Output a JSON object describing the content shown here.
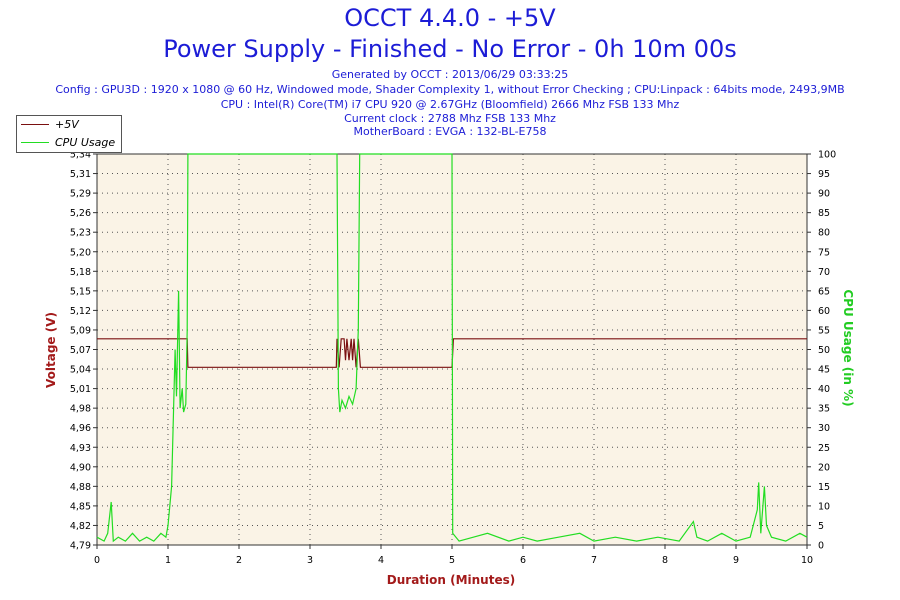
{
  "header": {
    "title": "OCCT 4.4.0 - +5V",
    "subtitle": "Power Supply - Finished - No Error - 0h 10m 00s",
    "info_lines": [
      "Generated by OCCT : 2013/06/29 03:33:25",
      "Config : GPU3D : 1920 x 1080 @ 60 Hz, Windowed mode, Shader Complexity 1, without Error Checking ; CPU:Linpack : 64bits mode, 2493,9MB",
      "CPU : Intel(R) Core(TM) i7 CPU 920 @ 2.67GHz (Bloomfield) 2666 Mhz FSB 133 Mhz",
      "Current clock : 2788 Mhz FSB 133 Mhz",
      "MotherBoard : EVGA : 132-BL-E758"
    ]
  },
  "colors": {
    "voltage": "#7a1010",
    "cpu": "#22dd22",
    "plot_bg": "#faf3e6",
    "axis_label": "#a31a1a",
    "title": "#1c1cd6"
  },
  "chart_data": {
    "type": "line",
    "title": "OCCT 4.4.0 - +5V",
    "xlabel": "Duration (Minutes)",
    "ylabel": "Voltage (V)",
    "ylabel_right": "CPU Usage (in %)",
    "xlim": [
      0,
      10
    ],
    "ylim": [
      4.79,
      5.34
    ],
    "ylim_right": [
      0,
      100
    ],
    "x_ticks": [
      "0",
      "1",
      "2",
      "3",
      "4",
      "5",
      "6",
      "7",
      "8",
      "9",
      "10"
    ],
    "y_ticks": [
      "5,34",
      "5,31",
      "5,29",
      "5,26",
      "5,23",
      "5,20",
      "5,18",
      "5,15",
      "5,12",
      "5,09",
      "5,07",
      "5,04",
      "5,01",
      "4,98",
      "4,96",
      "4,93",
      "4,90",
      "4,88",
      "4,85",
      "4,82",
      "4,79"
    ],
    "y_ticks_right": [
      "0",
      "5",
      "10",
      "15",
      "20",
      "25",
      "30",
      "35",
      "40",
      "45",
      "50",
      "55",
      "60",
      "65",
      "70",
      "75",
      "80",
      "85",
      "90",
      "95",
      "100"
    ],
    "grid": true,
    "legend_position": "top-left",
    "series": [
      {
        "name": "+5V",
        "axis": "left",
        "color": "#7a1010",
        "points": [
          [
            0,
            5.08
          ],
          [
            1.27,
            5.08
          ],
          [
            1.28,
            5.04
          ],
          [
            3.37,
            5.04
          ],
          [
            3.38,
            5.08
          ],
          [
            3.41,
            5.04
          ],
          [
            3.44,
            5.08
          ],
          [
            3.48,
            5.08
          ],
          [
            3.5,
            5.05
          ],
          [
            3.52,
            5.08
          ],
          [
            3.55,
            5.05
          ],
          [
            3.58,
            5.08
          ],
          [
            3.6,
            5.05
          ],
          [
            3.62,
            5.08
          ],
          [
            3.65,
            5.04
          ],
          [
            3.68,
            5.08
          ],
          [
            3.71,
            5.04
          ],
          [
            5.0,
            5.04
          ],
          [
            5.02,
            5.08
          ],
          [
            10,
            5.08
          ]
        ]
      },
      {
        "name": "CPU Usage",
        "axis": "right",
        "color": "#22dd22",
        "points": [
          [
            0,
            2
          ],
          [
            0.1,
            1
          ],
          [
            0.15,
            3
          ],
          [
            0.2,
            11
          ],
          [
            0.23,
            1
          ],
          [
            0.3,
            2
          ],
          [
            0.4,
            1
          ],
          [
            0.5,
            3
          ],
          [
            0.6,
            1
          ],
          [
            0.7,
            2
          ],
          [
            0.8,
            1
          ],
          [
            0.9,
            3
          ],
          [
            0.97,
            2
          ],
          [
            1.0,
            5
          ],
          [
            1.05,
            15
          ],
          [
            1.1,
            50
          ],
          [
            1.12,
            38
          ],
          [
            1.15,
            65
          ],
          [
            1.17,
            35
          ],
          [
            1.2,
            40
          ],
          [
            1.22,
            34
          ],
          [
            1.25,
            36
          ],
          [
            1.27,
            55
          ],
          [
            1.28,
            100
          ],
          [
            3.38,
            100
          ],
          [
            3.4,
            40
          ],
          [
            3.42,
            34
          ],
          [
            3.45,
            37
          ],
          [
            3.5,
            35
          ],
          [
            3.55,
            38
          ],
          [
            3.6,
            36
          ],
          [
            3.65,
            40
          ],
          [
            3.68,
            55
          ],
          [
            3.7,
            100
          ],
          [
            5.0,
            100
          ],
          [
            5.01,
            3
          ],
          [
            5.1,
            1
          ],
          [
            5.3,
            2
          ],
          [
            5.5,
            3
          ],
          [
            5.8,
            1
          ],
          [
            6.0,
            2
          ],
          [
            6.2,
            1
          ],
          [
            6.5,
            2
          ],
          [
            6.8,
            3
          ],
          [
            7.0,
            1
          ],
          [
            7.3,
            2
          ],
          [
            7.6,
            1
          ],
          [
            7.9,
            2
          ],
          [
            8.2,
            1
          ],
          [
            8.4,
            6
          ],
          [
            8.45,
            2
          ],
          [
            8.6,
            1
          ],
          [
            8.8,
            3
          ],
          [
            9.0,
            1
          ],
          [
            9.2,
            2
          ],
          [
            9.3,
            9
          ],
          [
            9.32,
            16
          ],
          [
            9.35,
            3
          ],
          [
            9.4,
            15
          ],
          [
            9.43,
            5
          ],
          [
            9.5,
            2
          ],
          [
            9.7,
            1
          ],
          [
            9.9,
            3
          ],
          [
            10,
            2
          ]
        ]
      }
    ]
  }
}
